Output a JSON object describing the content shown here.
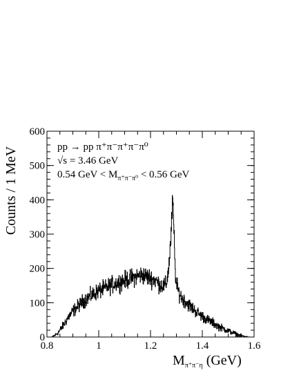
{
  "chart_data": {
    "type": "line",
    "style": "histogram",
    "xlim": [
      0.8,
      1.6
    ],
    "ylim": [
      0,
      600
    ],
    "bin_width_gev": 0.001,
    "x_ticks": [
      0.8,
      1.0,
      1.2,
      1.4,
      1.6
    ],
    "x_tick_labels": [
      "0.8",
      "1",
      "1.2",
      "1.4",
      "1.6"
    ],
    "y_ticks": [
      0,
      100,
      200,
      300,
      400,
      500,
      600
    ],
    "y_tick_labels": [
      "0",
      "100",
      "200",
      "300",
      "400",
      "500",
      "600"
    ],
    "ylabel": "Counts / 1 MeV",
    "xlabel": {
      "main": "M",
      "sub": "π⁺π⁻η",
      "unit": "(GeV)"
    },
    "annotations": {
      "line1": {
        "lhs": "pp",
        "arrow": "→",
        "rhs": "pp π⁺π⁻π⁺π⁻π⁰"
      },
      "line2": {
        "root": "√s",
        "rest": " = 3.46 GeV"
      },
      "line3": {
        "pre": "0.54 GeV < M",
        "sub": "π⁺π⁻π⁰",
        "post": " < 0.56 GeV"
      }
    },
    "grid": false,
    "legend": "none",
    "colors": {
      "line": "#000000",
      "background": "#ffffff"
    },
    "series": [
      {
        "x": [
          0.82,
          0.84,
          0.86,
          0.88,
          0.9,
          0.92,
          0.94,
          0.96,
          0.98,
          1.0,
          1.02,
          1.04,
          1.06,
          1.08,
          1.1,
          1.12,
          1.14,
          1.16,
          1.18,
          1.2,
          1.22,
          1.24,
          1.26,
          1.27,
          1.28,
          1.285,
          1.29,
          1.295,
          1.3,
          1.31,
          1.32,
          1.34,
          1.36,
          1.38,
          1.4,
          1.42,
          1.44,
          1.46,
          1.48,
          1.5,
          1.52,
          1.54,
          1.56,
          1.58,
          1.6
        ],
        "values": [
          0,
          10,
          30,
          55,
          75,
          90,
          105,
          115,
          125,
          135,
          140,
          148,
          155,
          160,
          165,
          170,
          175,
          180,
          178,
          172,
          165,
          150,
          150,
          200,
          300,
          400,
          320,
          200,
          150,
          130,
          115,
          100,
          85,
          72,
          60,
          50,
          42,
          32,
          25,
          18,
          12,
          6,
          2,
          0,
          0
        ]
      }
    ]
  }
}
